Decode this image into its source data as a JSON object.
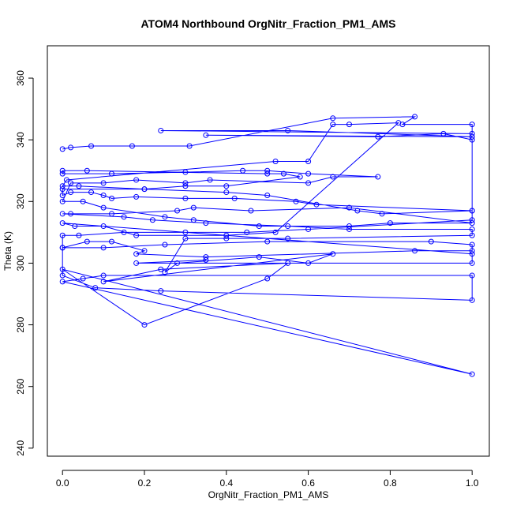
{
  "chart_data": {
    "type": "line",
    "title": "ATOM4 Northbound OrgNitr_Fraction_PM1_AMS",
    "x_label": "OrgNitr_Fraction_PM1_AMS",
    "y_label": "Theta (K)",
    "markers": true,
    "grid": false,
    "series": [
      {
        "color": "#0000ff",
        "x": [
          0,
          0.02,
          0.07,
          0.17,
          0.31,
          0.66,
          0.86,
          0.83,
          1,
          1,
          0.24,
          0.55,
          1,
          0.35,
          0.77,
          0.93,
          1,
          1,
          0.78,
          0.72,
          0.5,
          0.4,
          0.2,
          0,
          0,
          0.02,
          0.07,
          0.1,
          0.12,
          0.18,
          0.3,
          0.42,
          0.57,
          0.62,
          1,
          1,
          0.6,
          0.45,
          0.3,
          0.15,
          0.04,
          0,
          0,
          0.1,
          0.25,
          0.5,
          0.9,
          1,
          1,
          0.86,
          0.35,
          0.18,
          0.2,
          0.12,
          0.06,
          0,
          0,
          0.08,
          0.24,
          1,
          1,
          0.1,
          0.05,
          0,
          1,
          0,
          0.2,
          0.5,
          0.55,
          0.24,
          0.1,
          0.66,
          0.6,
          0.48,
          0.28,
          0.25,
          0.3,
          0.4,
          0.55,
          1,
          1,
          0.7,
          0.55,
          0.35,
          0.22,
          0.15,
          0,
          0.02,
          0.12,
          0.28,
          0.32,
          0.46,
          0.7,
          1,
          0.8,
          0.7,
          0.48,
          0.32,
          0.25,
          0.1,
          0.05,
          0,
          0.02,
          0.1,
          0.18,
          0.3,
          0.36,
          0.6,
          0.66,
          0.77,
          0.6,
          0.5,
          0.44,
          0.3,
          0.12,
          0,
          0,
          0.06,
          0.5,
          0.54,
          0.58,
          0.4,
          0.3,
          0.2,
          0.04,
          0,
          0.01,
          0.52,
          0.6,
          0.66,
          0.7,
          0.82,
          0.52,
          0.4,
          0.18,
          0.1,
          0.03,
          0,
          1,
          1,
          0.18,
          0.35
        ],
        "values": [
          337,
          337.5,
          338,
          338,
          338,
          347,
          347.5,
          345,
          345,
          342,
          343,
          343,
          341,
          341.5,
          341,
          342,
          340,
          317,
          316,
          317,
          322,
          323,
          324,
          324,
          322,
          323,
          323,
          322,
          321,
          321.5,
          321,
          321,
          320,
          319,
          317,
          314,
          311,
          310,
          310,
          310,
          309,
          309,
          305,
          305,
          306,
          307,
          307,
          306,
          304,
          304,
          302,
          303,
          304,
          307,
          307,
          305,
          296,
          292,
          291,
          288,
          296,
          296,
          295,
          294,
          264,
          298,
          280,
          295,
          300,
          298,
          294,
          303,
          300,
          302,
          300,
          297,
          308,
          308,
          308,
          309,
          311,
          311,
          312,
          313,
          314,
          315,
          316,
          316,
          316,
          317,
          318,
          317,
          318,
          313,
          313,
          312,
          312,
          314,
          315,
          318,
          320,
          320,
          326,
          326,
          327,
          326,
          327,
          326,
          328,
          328,
          329,
          330,
          330,
          329.5,
          329,
          329,
          330,
          330,
          329,
          329,
          328,
          325,
          325,
          324,
          325,
          325,
          327,
          333,
          333,
          345,
          345,
          345.5,
          310,
          309,
          309,
          312,
          312,
          313,
          303,
          300,
          300,
          301
        ]
      }
    ],
    "xlim": [
      -0.037,
      1.042
    ],
    "ylim": [
      237.4,
      370.5
    ],
    "xticks": [
      {
        "value": 0,
        "label": "0.0"
      },
      0.2,
      0.4,
      0.6,
      0.8,
      {
        "value": 1,
        "label": "1.0"
      }
    ],
    "yticks": [
      240,
      260,
      280,
      300,
      320,
      340,
      360
    ]
  }
}
